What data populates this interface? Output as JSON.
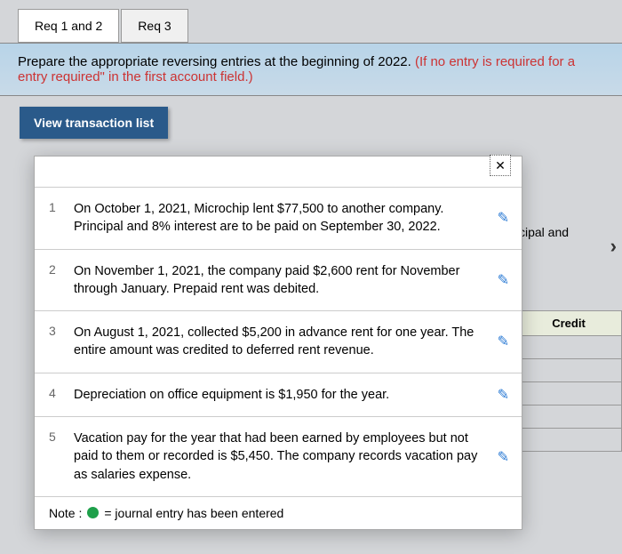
{
  "tabs": {
    "tab1": "Req 1 and 2",
    "tab2": "Req 3"
  },
  "instruction": {
    "main": "Prepare the appropriate reversing entries at the beginning of 2022. ",
    "red": "(If no entry is required for a",
    "red2": "entry required\" in the first account field.)"
  },
  "view_btn": "View transaction list",
  "close_glyph": "✕",
  "txns": [
    {
      "n": "1",
      "t": "On October 1, 2021, Microchip lent $77,500 to another company. Principal and 8% interest are to be paid on September 30, 2022."
    },
    {
      "n": "2",
      "t": "On November 1, 2021, the company paid $2,600 rent for November through January. Prepaid rent was debited."
    },
    {
      "n": "3",
      "t": "On August 1, 2021, collected $5,200 in advance rent for one year. The entire amount was credited to deferred rent revenue."
    },
    {
      "n": "4",
      "t": "Depreciation on office equipment is $1,950 for the year."
    },
    {
      "n": "5",
      "t": "Vacation pay for the year that had been earned by employees but not paid to them or recorded is $5,450. The company records vacation pay as salaries expense."
    }
  ],
  "note": {
    "prefix": "Note :",
    "legend": "= journal entry has been entered"
  },
  "edit_glyph": "✎",
  "bg": {
    "partial": "cipal and",
    "credit": "Credit",
    "arrow": "›"
  },
  "colors": {
    "dot": "#1ea04a",
    "view_btn_bg": "#2a5a8a"
  }
}
